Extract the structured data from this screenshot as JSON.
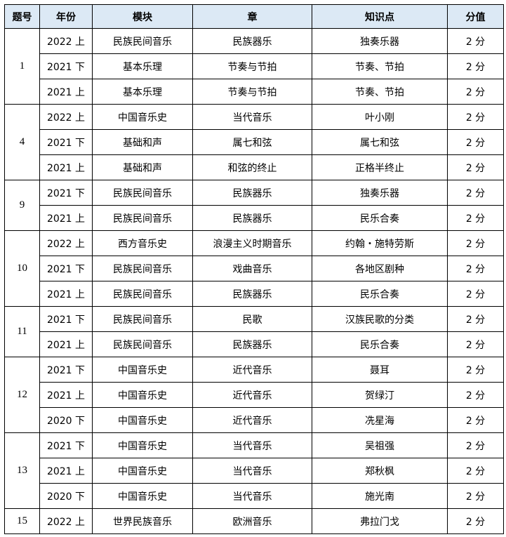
{
  "headers": [
    "题号",
    "年份",
    "模块",
    "章",
    "知识点",
    "分值"
  ],
  "colors": {
    "header_bg": "#dce9f5",
    "border": "#000000"
  },
  "groups": [
    {
      "no": "1",
      "rows": [
        [
          "2022 上",
          "民族民间音乐",
          "民族器乐",
          "独奏乐器",
          "2 分"
        ],
        [
          "2021 下",
          "基本乐理",
          "节奏与节拍",
          "节奏、节拍",
          "2 分"
        ],
        [
          "2021 上",
          "基本乐理",
          "节奏与节拍",
          "节奏、节拍",
          "2 分"
        ]
      ]
    },
    {
      "no": "4",
      "rows": [
        [
          "2022 上",
          "中国音乐史",
          "当代音乐",
          "叶小刚",
          "2 分"
        ],
        [
          "2021 下",
          "基础和声",
          "属七和弦",
          "属七和弦",
          "2 分"
        ],
        [
          "2021 上",
          "基础和声",
          "和弦的终止",
          "正格半终止",
          "2 分"
        ]
      ]
    },
    {
      "no": "9",
      "rows": [
        [
          "2021 下",
          "民族民间音乐",
          "民族器乐",
          "独奏乐器",
          "2 分"
        ],
        [
          "2021 上",
          "民族民间音乐",
          "民族器乐",
          "民乐合奏",
          "2 分"
        ]
      ]
    },
    {
      "no": "10",
      "rows": [
        [
          "2022 上",
          "西方音乐史",
          "浪漫主义时期音乐",
          "约翰・施特劳斯",
          "2 分"
        ],
        [
          "2021 下",
          "民族民间音乐",
          "戏曲音乐",
          "各地区剧种",
          "2 分"
        ],
        [
          "2021 上",
          "民族民间音乐",
          "民族器乐",
          "民乐合奏",
          "2 分"
        ]
      ]
    },
    {
      "no": "11",
      "rows": [
        [
          "2021 下",
          "民族民间音乐",
          "民歌",
          "汉族民歌的分类",
          "2 分"
        ],
        [
          "2021 上",
          "民族民间音乐",
          "民族器乐",
          "民乐合奏",
          "2 分"
        ]
      ]
    },
    {
      "no": "12",
      "rows": [
        [
          "2021 下",
          "中国音乐史",
          "近代音乐",
          "聂耳",
          "2 分"
        ],
        [
          "2021 上",
          "中国音乐史",
          "近代音乐",
          "贺绿汀",
          "2 分"
        ],
        [
          "2020 下",
          "中国音乐史",
          "近代音乐",
          "冼星海",
          "2 分"
        ]
      ]
    },
    {
      "no": "13",
      "rows": [
        [
          "2021 下",
          "中国音乐史",
          "当代音乐",
          "吴祖强",
          "2 分"
        ],
        [
          "2021 上",
          "中国音乐史",
          "当代音乐",
          "郑秋枫",
          "2 分"
        ],
        [
          "2020 下",
          "中国音乐史",
          "当代音乐",
          "施光南",
          "2 分"
        ]
      ]
    },
    {
      "no": "15",
      "rows": [
        [
          "2022 上",
          "世界民族音乐",
          "欧洲音乐",
          "弗拉门戈",
          "2 分"
        ]
      ]
    }
  ]
}
